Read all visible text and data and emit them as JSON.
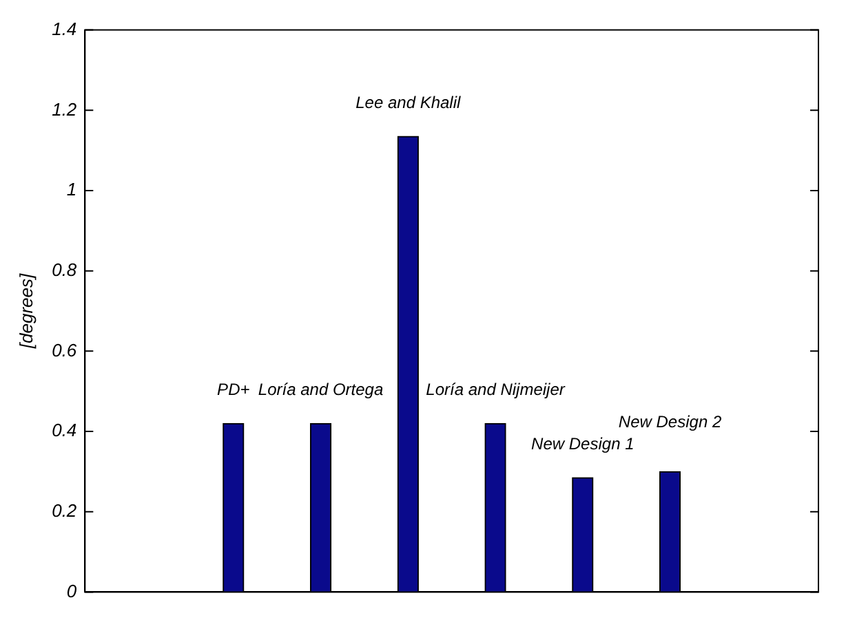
{
  "chart_data": {
    "type": "bar",
    "ylabel": "[degrees]",
    "categories": [
      "PD+",
      "Loría and Ortega",
      "Lee and Khalil",
      "Loría and Nijmeijer",
      "New Design 1",
      "New Design 2"
    ],
    "values": [
      0.42,
      0.42,
      1.135,
      0.42,
      0.285,
      0.3
    ],
    "color": "#0a0a8c",
    "ylim": [
      0,
      1.4
    ],
    "yticks": [
      0,
      0.2,
      0.4,
      0.6,
      0.8,
      1,
      1.2,
      1.4
    ],
    "grid": false,
    "legend": false,
    "tick_labels": "y"
  }
}
